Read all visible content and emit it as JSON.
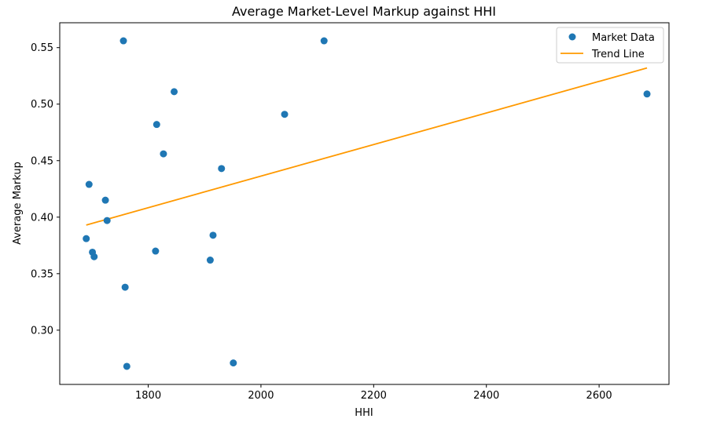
{
  "chart_data": {
    "type": "scatter",
    "title": "Average Market-Level Markup against HHI",
    "xlabel": "HHI",
    "ylabel": "Average Markup",
    "xlim": [
      1643,
      2724
    ],
    "ylim": [
      0.252,
      0.572
    ],
    "xticks": [
      1800,
      2000,
      2200,
      2400,
      2600
    ],
    "yticks": [
      0.3,
      0.35,
      0.4,
      0.45,
      0.5,
      0.55
    ],
    "xtick_labels": [
      "1800",
      "2000",
      "2200",
      "2400",
      "2600"
    ],
    "ytick_labels": [
      "0.30",
      "0.35",
      "0.40",
      "0.45",
      "0.50",
      "0.55"
    ],
    "grid": false,
    "legend_position": "top-right",
    "series": [
      {
        "name": "Market Data",
        "kind": "scatter",
        "color": "#1f77b4",
        "points": [
          {
            "x": 1690,
            "y": 0.381
          },
          {
            "x": 1695,
            "y": 0.429
          },
          {
            "x": 1701,
            "y": 0.369
          },
          {
            "x": 1704,
            "y": 0.365
          },
          {
            "x": 1724,
            "y": 0.415
          },
          {
            "x": 1727,
            "y": 0.397
          },
          {
            "x": 1756,
            "y": 0.556
          },
          {
            "x": 1759,
            "y": 0.338
          },
          {
            "x": 1762,
            "y": 0.268
          },
          {
            "x": 1813,
            "y": 0.37
          },
          {
            "x": 1815,
            "y": 0.482
          },
          {
            "x": 1827,
            "y": 0.456
          },
          {
            "x": 1846,
            "y": 0.511
          },
          {
            "x": 1910,
            "y": 0.362
          },
          {
            "x": 1915,
            "y": 0.384
          },
          {
            "x": 1930,
            "y": 0.443
          },
          {
            "x": 1951,
            "y": 0.271
          },
          {
            "x": 2042,
            "y": 0.491
          },
          {
            "x": 2112,
            "y": 0.556
          },
          {
            "x": 2685,
            "y": 0.509
          }
        ]
      },
      {
        "name": "Trend Line",
        "kind": "line",
        "color": "#ff9900",
        "points": [
          {
            "x": 1690,
            "y": 0.393
          },
          {
            "x": 2685,
            "y": 0.532
          }
        ]
      }
    ]
  }
}
